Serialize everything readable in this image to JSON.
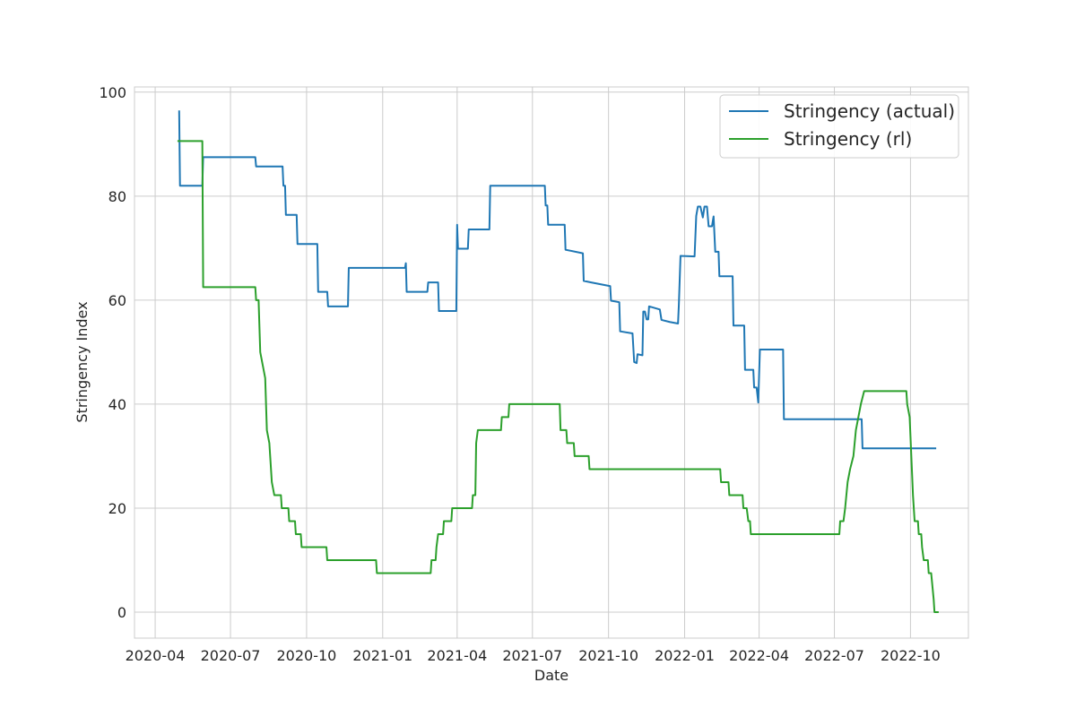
{
  "chart_data": {
    "type": "line",
    "title": "",
    "xlabel": "Date",
    "ylabel": "Stringency Index",
    "x_ticks": [
      "2020-04",
      "2020-07",
      "2020-10",
      "2021-01",
      "2021-04",
      "2021-07",
      "2021-10",
      "2022-01",
      "2022-04",
      "2022-07",
      "2022-10"
    ],
    "xlim": [
      "2020-03-07",
      "2022-12-10"
    ],
    "y_ticks": [
      0,
      20,
      40,
      60,
      80,
      100
    ],
    "ylim": [
      -5,
      101
    ],
    "grid": true,
    "legend_position": "top-right",
    "series": [
      {
        "name": "Stringency (actual)",
        "color": "#1f77b4",
        "points": [
          [
            "2020-04-30",
            96.3
          ],
          [
            "2020-05-01",
            82
          ],
          [
            "2020-05-28",
            82
          ],
          [
            "2020-05-29",
            87.5
          ],
          [
            "2020-07-31",
            87.5
          ],
          [
            "2020-08-01",
            85.7
          ],
          [
            "2020-09-02",
            85.7
          ],
          [
            "2020-09-03",
            82
          ],
          [
            "2020-09-05",
            82
          ],
          [
            "2020-09-06",
            76.4
          ],
          [
            "2020-09-19",
            76.4
          ],
          [
            "2020-09-20",
            70.8
          ],
          [
            "2020-10-14",
            70.8
          ],
          [
            "2020-10-15",
            61.6
          ],
          [
            "2020-10-26",
            61.6
          ],
          [
            "2020-10-27",
            58.8
          ],
          [
            "2020-11-20",
            58.8
          ],
          [
            "2020-11-21",
            66.2
          ],
          [
            "2021-01-28",
            66.2
          ],
          [
            "2021-01-29",
            67.1
          ],
          [
            "2021-01-30",
            61.6
          ],
          [
            "2021-02-24",
            61.6
          ],
          [
            "2021-02-25",
            63.4
          ],
          [
            "2021-03-09",
            63.4
          ],
          [
            "2021-03-10",
            57.9
          ],
          [
            "2021-03-31",
            57.9
          ],
          [
            "2021-04-01",
            74.5
          ],
          [
            "2021-04-02",
            69.9
          ],
          [
            "2021-04-14",
            69.9
          ],
          [
            "2021-04-15",
            73.6
          ],
          [
            "2021-05-10",
            73.6
          ],
          [
            "2021-05-11",
            82
          ],
          [
            "2021-07-16",
            82
          ],
          [
            "2021-07-17",
            78.2
          ],
          [
            "2021-07-19",
            78.2
          ],
          [
            "2021-07-20",
            74.5
          ],
          [
            "2021-08-09",
            74.5
          ],
          [
            "2021-08-10",
            69.7
          ],
          [
            "2021-08-31",
            69
          ],
          [
            "2021-09-01",
            63.7
          ],
          [
            "2021-09-10",
            63.4
          ],
          [
            "2021-10-03",
            62.7
          ],
          [
            "2021-10-04",
            59.9
          ],
          [
            "2021-10-14",
            59.6
          ],
          [
            "2021-10-15",
            54
          ],
          [
            "2021-10-30",
            53.6
          ],
          [
            "2021-11-01",
            48.1
          ],
          [
            "2021-11-04",
            47.9
          ],
          [
            "2021-11-05",
            49.6
          ],
          [
            "2021-11-11",
            49.4
          ],
          [
            "2021-11-12",
            57.8
          ],
          [
            "2021-11-14",
            57.8
          ],
          [
            "2021-11-16",
            56.3
          ],
          [
            "2021-11-18",
            56.3
          ],
          [
            "2021-11-19",
            58.8
          ],
          [
            "2021-12-02",
            58.2
          ],
          [
            "2021-12-04",
            56.2
          ],
          [
            "2021-12-14",
            55.8
          ],
          [
            "2021-12-24",
            55.5
          ],
          [
            "2021-12-25",
            59.1
          ],
          [
            "2021-12-27",
            68.5
          ],
          [
            "2022-01-13",
            68.4
          ],
          [
            "2022-01-15",
            76.2
          ],
          [
            "2022-01-17",
            78
          ],
          [
            "2022-01-20",
            78
          ],
          [
            "2022-01-23",
            75.9
          ],
          [
            "2022-01-25",
            78
          ],
          [
            "2022-01-28",
            78
          ],
          [
            "2022-01-30",
            74.2
          ],
          [
            "2022-02-03",
            74.2
          ],
          [
            "2022-02-05",
            76.1
          ],
          [
            "2022-02-07",
            69.3
          ],
          [
            "2022-02-11",
            69.3
          ],
          [
            "2022-02-12",
            64.6
          ],
          [
            "2022-02-28",
            64.6
          ],
          [
            "2022-03-01",
            55.1
          ],
          [
            "2022-03-14",
            55.1
          ],
          [
            "2022-03-15",
            46.6
          ],
          [
            "2022-03-25",
            46.6
          ],
          [
            "2022-03-26",
            43.2
          ],
          [
            "2022-03-29",
            43.2
          ],
          [
            "2022-03-31",
            40.3
          ],
          [
            "2022-04-01",
            45.6
          ],
          [
            "2022-04-02",
            50.5
          ],
          [
            "2022-04-30",
            50.5
          ],
          [
            "2022-05-01",
            37.1
          ],
          [
            "2022-08-03",
            37.1
          ],
          [
            "2022-08-04",
            31.5
          ],
          [
            "2022-10-31",
            31.5
          ]
        ]
      },
      {
        "name": "Stringency (rl)",
        "color": "#2ca02c",
        "points": [
          [
            "2020-04-29",
            90.6
          ],
          [
            "2020-05-28",
            90.6
          ],
          [
            "2020-05-29",
            62.5
          ],
          [
            "2020-07-31",
            62.5
          ],
          [
            "2020-08-01",
            60
          ],
          [
            "2020-08-04",
            60
          ],
          [
            "2020-08-06",
            50
          ],
          [
            "2020-08-09",
            47.5
          ],
          [
            "2020-08-12",
            45
          ],
          [
            "2020-08-14",
            35
          ],
          [
            "2020-08-17",
            32.5
          ],
          [
            "2020-08-20",
            25
          ],
          [
            "2020-08-23",
            22.5
          ],
          [
            "2020-08-31",
            22.5
          ],
          [
            "2020-09-01",
            20
          ],
          [
            "2020-09-09",
            20
          ],
          [
            "2020-09-10",
            17.5
          ],
          [
            "2020-09-17",
            17.5
          ],
          [
            "2020-09-18",
            15
          ],
          [
            "2020-09-24",
            15
          ],
          [
            "2020-09-25",
            12.5
          ],
          [
            "2020-10-25",
            12.5
          ],
          [
            "2020-10-26",
            10
          ],
          [
            "2020-12-24",
            10
          ],
          [
            "2020-12-25",
            7.5
          ],
          [
            "2021-02-28",
            7.5
          ],
          [
            "2021-03-01",
            10
          ],
          [
            "2021-03-06",
            10
          ],
          [
            "2021-03-07",
            12.5
          ],
          [
            "2021-03-09",
            15
          ],
          [
            "2021-03-15",
            15
          ],
          [
            "2021-03-16",
            17.5
          ],
          [
            "2021-03-25",
            17.5
          ],
          [
            "2021-03-26",
            20
          ],
          [
            "2021-04-19",
            20
          ],
          [
            "2021-04-20",
            22.5
          ],
          [
            "2021-04-23",
            22.5
          ],
          [
            "2021-04-24",
            32.5
          ],
          [
            "2021-04-26",
            35
          ],
          [
            "2021-05-24",
            35
          ],
          [
            "2021-05-25",
            37.5
          ],
          [
            "2021-06-02",
            37.5
          ],
          [
            "2021-06-03",
            40
          ],
          [
            "2021-08-03",
            40
          ],
          [
            "2021-08-04",
            35
          ],
          [
            "2021-08-11",
            35
          ],
          [
            "2021-08-12",
            32.5
          ],
          [
            "2021-08-20",
            32.5
          ],
          [
            "2021-08-21",
            30
          ],
          [
            "2021-09-07",
            30
          ],
          [
            "2021-09-08",
            27.5
          ],
          [
            "2022-02-13",
            27.5
          ],
          [
            "2022-02-14",
            25
          ],
          [
            "2022-02-23",
            25
          ],
          [
            "2022-02-24",
            22.5
          ],
          [
            "2022-03-12",
            22.5
          ],
          [
            "2022-03-13",
            20
          ],
          [
            "2022-03-17",
            20
          ],
          [
            "2022-03-19",
            17.5
          ],
          [
            "2022-03-21",
            17.5
          ],
          [
            "2022-03-22",
            15
          ],
          [
            "2022-07-07",
            15
          ],
          [
            "2022-07-08",
            17.5
          ],
          [
            "2022-07-12",
            17.5
          ],
          [
            "2022-07-14",
            20
          ],
          [
            "2022-07-17",
            25
          ],
          [
            "2022-07-20",
            27.5
          ],
          [
            "2022-07-24",
            30
          ],
          [
            "2022-07-27",
            35
          ],
          [
            "2022-07-30",
            37.5
          ],
          [
            "2022-08-02",
            40
          ],
          [
            "2022-08-06",
            42.5
          ],
          [
            "2022-09-26",
            42.5
          ],
          [
            "2022-09-27",
            40
          ],
          [
            "2022-09-30",
            37.5
          ],
          [
            "2022-10-02",
            30
          ],
          [
            "2022-10-04",
            22.5
          ],
          [
            "2022-10-06",
            17.5
          ],
          [
            "2022-10-10",
            17.5
          ],
          [
            "2022-10-11",
            15
          ],
          [
            "2022-10-14",
            15
          ],
          [
            "2022-10-15",
            12.5
          ],
          [
            "2022-10-17",
            10
          ],
          [
            "2022-10-22",
            10
          ],
          [
            "2022-10-23",
            7.5
          ],
          [
            "2022-10-26",
            7.5
          ],
          [
            "2022-10-29",
            2.5
          ],
          [
            "2022-10-30",
            0
          ],
          [
            "2022-11-03",
            0
          ]
        ]
      }
    ]
  }
}
